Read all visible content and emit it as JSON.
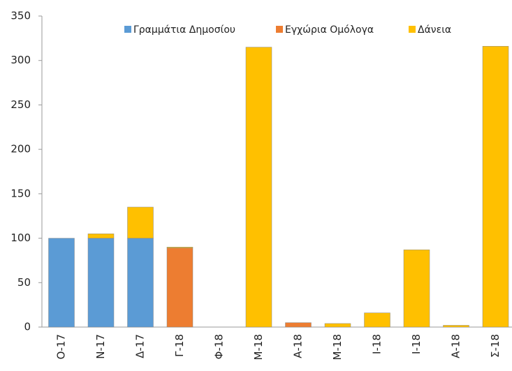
{
  "chart_data": {
    "type": "stacked_bar",
    "categories": [
      "Ο-17",
      "Ν-17",
      "Δ-17",
      "Γ-18",
      "Φ-18",
      "Μ-18",
      "Α-18",
      "Μ-18",
      "Ι-18",
      "Ι-18",
      "Α-18",
      "Σ-18"
    ],
    "series": [
      {
        "name": "Γραμμάτια Δημοσίου",
        "color": "#5b9bd5",
        "values": [
          100,
          100,
          100,
          0,
          0,
          0,
          0,
          0,
          0,
          0,
          0,
          0
        ]
      },
      {
        "name": "Εγχώρια Ομόλογα",
        "color": "#ed7d31",
        "values": [
          0,
          0,
          0,
          89,
          0,
          0,
          5,
          0,
          0,
          0,
          0,
          0
        ]
      },
      {
        "name": "Δάνεια",
        "color": "#ffc000",
        "values": [
          0,
          5,
          35,
          1,
          0,
          315,
          0,
          4,
          16,
          87,
          2,
          316
        ]
      }
    ],
    "ylim": [
      0,
      350
    ],
    "yticks": [
      0,
      50,
      100,
      150,
      200,
      250,
      300,
      350
    ],
    "grid": false,
    "legend": "top"
  }
}
